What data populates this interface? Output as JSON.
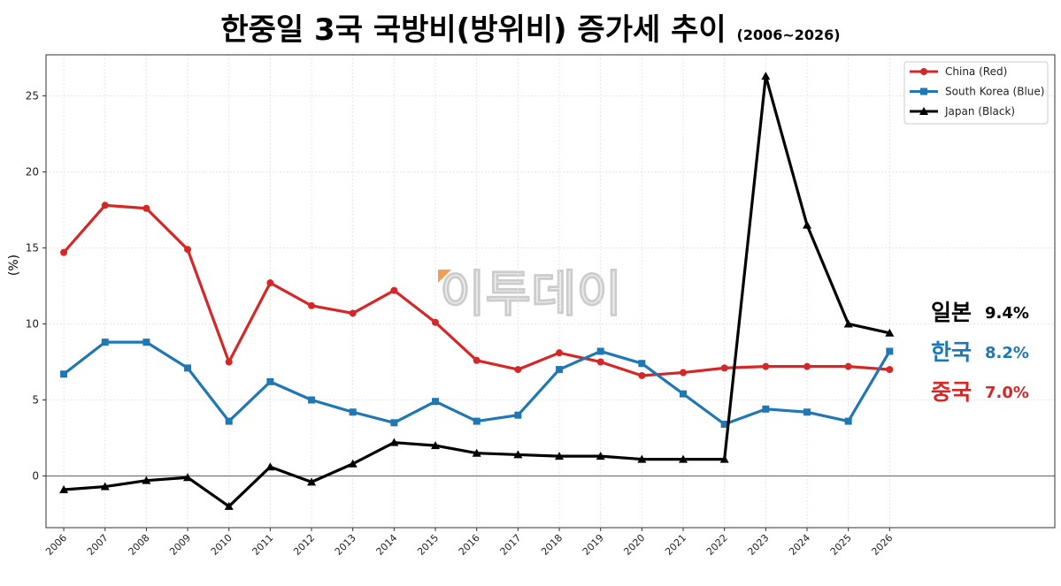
{
  "title": "한중일 3국 국방비(방위비) 증가세 추이",
  "subtitle": "(2006~2026)",
  "watermark": "이투데이",
  "chart_data": {
    "type": "line",
    "title": "한중일 3국 국방비(방위비) 증가세 추이 (2006~2026)",
    "xlabel": "",
    "ylabel": "(%)",
    "x": [
      2006,
      2007,
      2008,
      2009,
      2010,
      2011,
      2012,
      2013,
      2014,
      2015,
      2016,
      2017,
      2018,
      2019,
      2020,
      2021,
      2022,
      2023,
      2024,
      2025,
      2026
    ],
    "ylim": [
      -3.4,
      27.7
    ],
    "xlim": [
      2005.57,
      2030.0
    ],
    "yticks": [
      0,
      5,
      10,
      15,
      20,
      25
    ],
    "grid": true,
    "legend_position": "top-right",
    "series": [
      {
        "name": "China (Red)",
        "color": "#d62728",
        "marker": "circle",
        "values": [
          14.7,
          17.8,
          17.6,
          14.9,
          7.5,
          12.7,
          11.2,
          10.7,
          12.2,
          10.1,
          7.6,
          7.0,
          8.1,
          7.5,
          6.6,
          6.8,
          7.1,
          7.2,
          7.2,
          7.2,
          7.0
        ]
      },
      {
        "name": "South Korea (Blue)",
        "color": "#1f77b4",
        "marker": "square",
        "values": [
          6.7,
          8.8,
          8.8,
          7.1,
          3.6,
          6.2,
          5.0,
          4.2,
          3.5,
          4.9,
          3.6,
          4.0,
          7.0,
          8.2,
          7.4,
          5.4,
          3.4,
          4.4,
          4.2,
          3.6,
          8.2
        ]
      },
      {
        "name": "Japan (Black)",
        "color": "#000000",
        "marker": "triangle",
        "values": [
          -0.9,
          -0.7,
          -0.3,
          -0.1,
          -2.0,
          0.6,
          -0.4,
          0.8,
          2.2,
          2.0,
          1.5,
          1.4,
          1.3,
          1.3,
          1.1,
          1.1,
          1.1,
          26.3,
          16.5,
          10.0,
          9.4
        ]
      }
    ],
    "annotations": [
      {
        "label": "일본",
        "value": "9.4%",
        "color": "#000000"
      },
      {
        "label": "한국",
        "value": "8.2%",
        "color": "#1f77b4"
      },
      {
        "label": "중국",
        "value": "7.0%",
        "color": "#d62728"
      }
    ]
  }
}
